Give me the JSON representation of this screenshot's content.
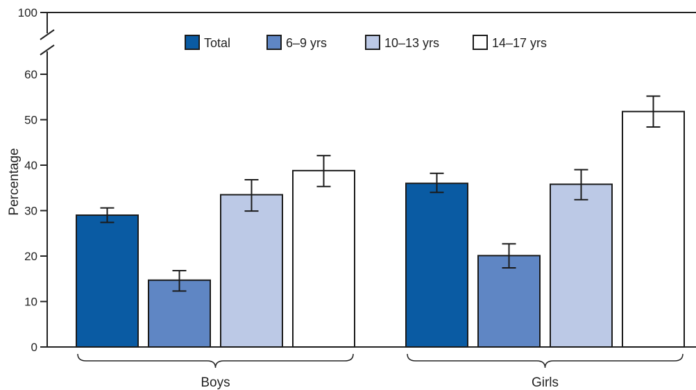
{
  "chart_data": {
    "type": "bar",
    "title": "",
    "xlabel": "",
    "ylabel": "Percentage",
    "ylim": [
      0,
      100
    ],
    "axis_break": [
      60,
      100
    ],
    "yticks": [
      0,
      10,
      20,
      30,
      40,
      50,
      60,
      100
    ],
    "grid": false,
    "legend_position": "top",
    "categories": [
      "Boys",
      "Girls"
    ],
    "series": [
      {
        "name": "Total",
        "color": "#0a5ba3",
        "values": [
          29.0,
          36.0
        ],
        "error_low": [
          27.4,
          34.0
        ],
        "error_high": [
          30.6,
          38.2
        ]
      },
      {
        "name": "6–9 yrs",
        "color": "#5f86c4",
        "values": [
          14.7,
          20.1
        ],
        "error_low": [
          12.3,
          17.4
        ],
        "error_high": [
          16.8,
          22.7
        ]
      },
      {
        "name": "10–13 yrs",
        "color": "#bcc9e6",
        "values": [
          33.5,
          35.8
        ],
        "error_low": [
          29.9,
          32.4
        ],
        "error_high": [
          36.8,
          39.0
        ]
      },
      {
        "name": "14–17 yrs",
        "color": "#ffffff",
        "values": [
          38.8,
          51.8
        ],
        "error_low": [
          35.3,
          48.4
        ],
        "error_high": [
          42.1,
          55.2
        ]
      }
    ]
  }
}
